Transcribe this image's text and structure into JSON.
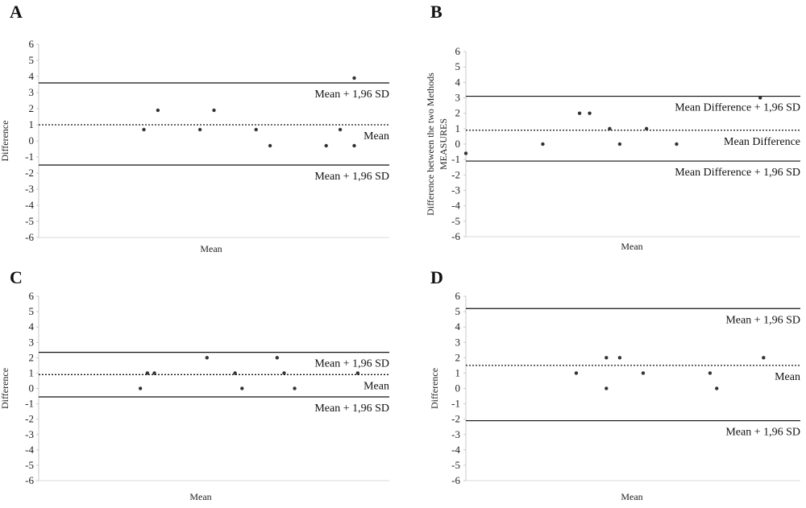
{
  "chart_data": [
    {
      "type": "scatter",
      "panel": "A",
      "xlabel": "Mean",
      "ylabel": "Difference",
      "ylim": [
        -6,
        6
      ],
      "yticks": [
        6,
        5,
        4,
        3,
        2,
        1,
        0,
        -1,
        -2,
        -3,
        -4,
        -5,
        -6
      ],
      "lines": [
        {
          "value": 3.6,
          "style": "solid",
          "label": "Mean + 1,96 SD"
        },
        {
          "value": 1.0,
          "style": "dotted",
          "label": "Mean"
        },
        {
          "value": -1.5,
          "style": "solid",
          "label": "Mean + 1,96 SD"
        }
      ],
      "points": [
        {
          "x": 0.3,
          "y": 0.7
        },
        {
          "x": 0.34,
          "y": 1.9
        },
        {
          "x": 0.46,
          "y": 0.7
        },
        {
          "x": 0.5,
          "y": 1.9
        },
        {
          "x": 0.62,
          "y": 0.7
        },
        {
          "x": 0.66,
          "y": -0.3
        },
        {
          "x": 0.82,
          "y": -0.3
        },
        {
          "x": 0.86,
          "y": 0.7
        },
        {
          "x": 0.9,
          "y": -0.3
        },
        {
          "x": 0.9,
          "y": 3.9
        }
      ]
    },
    {
      "type": "scatter",
      "panel": "B",
      "xlabel": "Mean",
      "ylabel": "Difference between the two Methods MEASURES",
      "ylim": [
        -6,
        6
      ],
      "yticks": [
        6,
        5,
        4,
        3,
        2,
        1,
        0,
        -1,
        -2,
        -3,
        -4,
        -5,
        -6
      ],
      "lines": [
        {
          "value": 3.1,
          "style": "solid",
          "label": "Mean Difference + 1,96 SD"
        },
        {
          "value": 0.9,
          "style": "dotted",
          "label": "Mean Difference"
        },
        {
          "value": -1.1,
          "style": "solid",
          "label": "Mean Difference + 1,96 SD"
        }
      ],
      "points": [
        {
          "x": 0.0,
          "y": -0.6
        },
        {
          "x": 0.23,
          "y": 0.0
        },
        {
          "x": 0.34,
          "y": 2.0
        },
        {
          "x": 0.37,
          "y": 2.0
        },
        {
          "x": 0.43,
          "y": 1.0
        },
        {
          "x": 0.46,
          "y": 0.0
        },
        {
          "x": 0.54,
          "y": 1.0
        },
        {
          "x": 0.63,
          "y": 0.0
        },
        {
          "x": 0.88,
          "y": 3.0
        }
      ]
    },
    {
      "type": "scatter",
      "panel": "C",
      "xlabel": "Mean",
      "ylabel": "Difference",
      "ylim": [
        -6,
        6
      ],
      "yticks": [
        6,
        5,
        4,
        3,
        2,
        1,
        0,
        -1,
        -2,
        -3,
        -4,
        -5,
        -6
      ],
      "lines": [
        {
          "value": 2.35,
          "style": "solid",
          "label": "Mean + 1,96 SD"
        },
        {
          "value": 0.9,
          "style": "dotted",
          "label": "Mean"
        },
        {
          "value": -0.55,
          "style": "solid",
          "label": "Mean + 1,96 SD"
        }
      ],
      "points": [
        {
          "x": 0.29,
          "y": 0.0
        },
        {
          "x": 0.31,
          "y": 1.0
        },
        {
          "x": 0.33,
          "y": 1.0
        },
        {
          "x": 0.48,
          "y": 2.0
        },
        {
          "x": 0.56,
          "y": 1.0
        },
        {
          "x": 0.58,
          "y": 0.0
        },
        {
          "x": 0.68,
          "y": 2.0
        },
        {
          "x": 0.7,
          "y": 1.0
        },
        {
          "x": 0.73,
          "y": 0.0
        },
        {
          "x": 0.91,
          "y": 1.0
        }
      ]
    },
    {
      "type": "scatter",
      "panel": "D",
      "xlabel": "Mean",
      "ylabel": "Difference",
      "ylim": [
        -6,
        6
      ],
      "yticks": [
        6,
        5,
        4,
        3,
        2,
        1,
        0,
        -1,
        -2,
        -3,
        -4,
        -5,
        -6
      ],
      "lines": [
        {
          "value": 5.2,
          "style": "solid",
          "label": "Mean + 1,96 SD"
        },
        {
          "value": 1.5,
          "style": "dotted",
          "label": "Mean"
        },
        {
          "value": -2.1,
          "style": "solid",
          "label": "Mean + 1,96 SD"
        }
      ],
      "points": [
        {
          "x": 0.33,
          "y": 1.0
        },
        {
          "x": 0.42,
          "y": 0.0
        },
        {
          "x": 0.42,
          "y": 2.0
        },
        {
          "x": 0.46,
          "y": 2.0
        },
        {
          "x": 0.53,
          "y": 1.0
        },
        {
          "x": 0.73,
          "y": 1.0
        },
        {
          "x": 0.75,
          "y": 0.0
        },
        {
          "x": 0.89,
          "y": 2.0
        }
      ]
    }
  ]
}
